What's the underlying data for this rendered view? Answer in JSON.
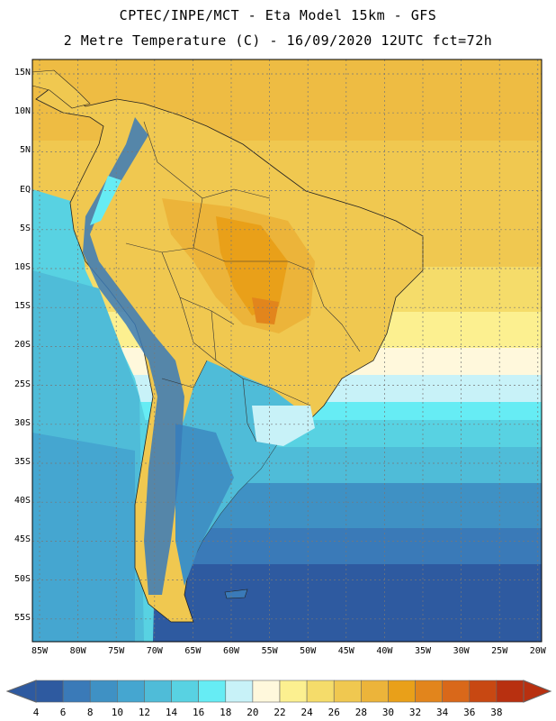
{
  "header": {
    "line1": "CPTEC/INPE/MCT -  Eta Model 15km - GFS",
    "line2": "2 Metre Temperature (C) - 16/09/2020 12UTC fct=72h"
  },
  "map": {
    "variable": "2 Metre Temperature",
    "units": "C",
    "lat_labels": [
      "15N",
      "10N",
      "5N",
      "EQ",
      "5S",
      "10S",
      "15S",
      "20S",
      "25S",
      "30S",
      "35S",
      "40S",
      "45S",
      "50S",
      "55S"
    ],
    "lon_labels": [
      "85W",
      "80W",
      "75W",
      "70W",
      "65W",
      "60W",
      "55W",
      "50W",
      "45W",
      "40W",
      "35W",
      "30W",
      "25W",
      "20W"
    ]
  },
  "colorbar": {
    "labels": [
      "4",
      "6",
      "8",
      "10",
      "12",
      "14",
      "16",
      "18",
      "20",
      "22",
      "24",
      "26",
      "28",
      "30",
      "32",
      "34",
      "36",
      "38"
    ],
    "colors": [
      "#2e5aa0",
      "#3a7ab8",
      "#3f91c4",
      "#45a6d0",
      "#4fbcd8",
      "#58d2e2",
      "#66ecf4",
      "#c8f2f8",
      "#fff8dc",
      "#fcf090",
      "#f5dc6a",
      "#f0c850",
      "#ecb43a",
      "#e9a019",
      "#e2851c",
      "#d9681a",
      "#c84812",
      "#b83010"
    ]
  }
}
